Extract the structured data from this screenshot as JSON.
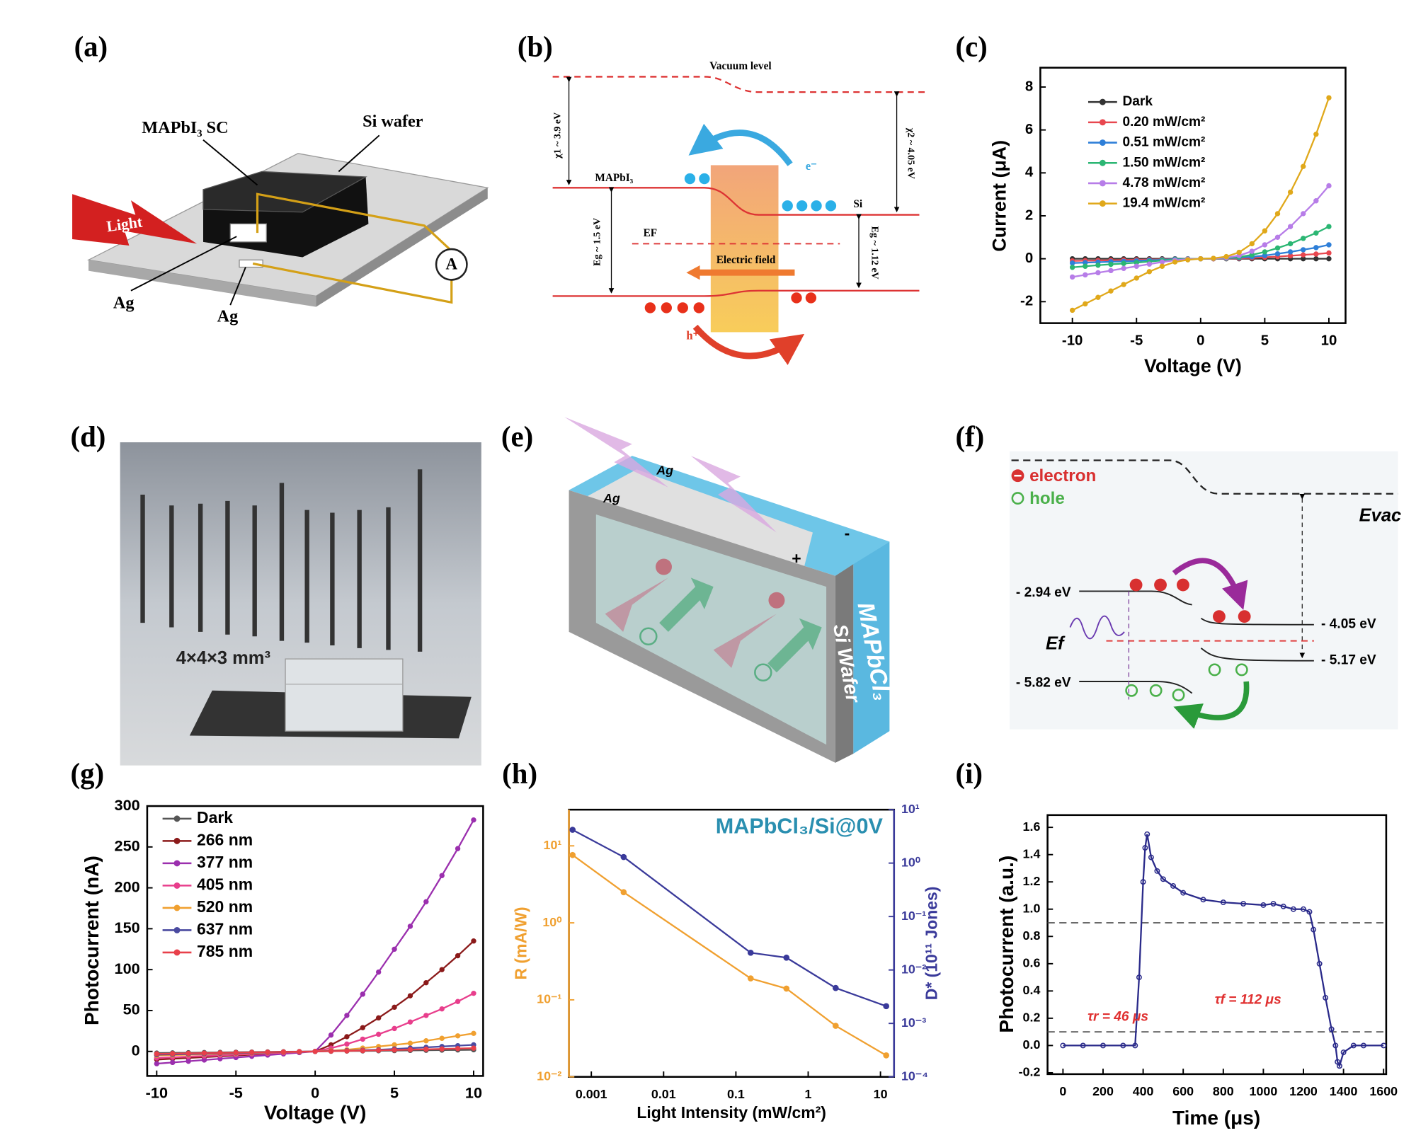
{
  "diagrams": {
    "a": {
      "label": "(a)",
      "crystal": "MAPbI₃ SC",
      "wafer": "Si wafer",
      "light": "Light",
      "electrode_1": "Ag",
      "electrode_2": "Ag",
      "meter": "A"
    },
    "b": {
      "label": "(b)",
      "vacuum": "Vacuum level",
      "chi1": "χ1 ~ 3.9 eV",
      "material": "MAPbI₃",
      "electron": "e⁻",
      "gap1": "Eg ~ 1.5 eV",
      "fermi": "EF",
      "field": "Electric field",
      "hole": "h⁺",
      "chi2": "χ2 ~ 4.05 eV",
      "si": "Si",
      "gap2": "Eg ~ 1.12 eV"
    },
    "d": {
      "label": "(d)",
      "size": "4×4×3 mm³"
    },
    "e": {
      "label": "(e)",
      "ag_1": "Ag",
      "ag_2": "Ag",
      "plus": "+",
      "minus": "-",
      "wafer": "Si Wafer",
      "crystal": "MAPbCl₃"
    },
    "f": {
      "label": "(f)",
      "electron": "electron",
      "hole": "hole",
      "evac": "Evac",
      "level_1": "- 2.94 eV",
      "level_2": "- 4.05 eV",
      "fermi": "Ef",
      "level_3": "- 5.17 eV",
      "level_4": "- 5.82 eV"
    }
  },
  "chart_data": [
    {
      "type": "line",
      "label": "(c)",
      "x_label": "Voltage (V)",
      "y_label": "Current (μA)",
      "x": [
        -10,
        -9,
        -8,
        -7,
        -6,
        -5,
        -4,
        -3,
        -2,
        -1,
        0,
        1,
        2,
        3,
        4,
        5,
        6,
        7,
        8,
        9,
        10
      ],
      "xlim": [
        -12.5,
        11.3
      ],
      "xticks": [
        -10,
        -5,
        0,
        5,
        10
      ],
      "ylim": [
        -3,
        8.9
      ],
      "yticks": [
        -2,
        0,
        2,
        4,
        6,
        8
      ],
      "legend": "upper left",
      "series": [
        {
          "name": "Dark",
          "color": "#333333",
          "values": [
            0,
            0,
            0,
            0,
            0,
            0,
            0,
            0,
            0,
            0,
            0,
            0,
            0,
            0,
            0,
            0,
            0,
            0,
            0,
            0,
            0
          ]
        },
        {
          "name": "0.20 mW/cm²",
          "color": "#e8474f",
          "values": [
            -0.1,
            -0.09,
            -0.08,
            -0.07,
            -0.06,
            -0.05,
            -0.04,
            -0.03,
            -0.02,
            -0.01,
            0,
            0,
            0.01,
            0.02,
            0.04,
            0.07,
            0.1,
            0.14,
            0.18,
            0.22,
            0.27
          ]
        },
        {
          "name": "0.51 mW/cm²",
          "color": "#2e7fd8",
          "values": [
            -0.2,
            -0.18,
            -0.16,
            -0.14,
            -0.12,
            -0.1,
            -0.07,
            -0.05,
            -0.02,
            -0.01,
            0,
            0.01,
            0.02,
            0.05,
            0.09,
            0.15,
            0.23,
            0.32,
            0.42,
            0.52,
            0.65
          ]
        },
        {
          "name": "1.50 mW/cm²",
          "color": "#2bb673",
          "values": [
            -0.4,
            -0.35,
            -0.3,
            -0.26,
            -0.22,
            -0.18,
            -0.13,
            -0.08,
            -0.04,
            -0.01,
            0,
            0.01,
            0.03,
            0.08,
            0.18,
            0.32,
            0.5,
            0.7,
            0.95,
            1.2,
            1.5
          ]
        },
        {
          "name": "4.78 mW/cm²",
          "color": "#b77de8",
          "values": [
            -0.85,
            -0.75,
            -0.65,
            -0.55,
            -0.45,
            -0.35,
            -0.25,
            -0.15,
            -0.07,
            -0.02,
            0,
            0.01,
            0.05,
            0.15,
            0.35,
            0.65,
            1.0,
            1.5,
            2.1,
            2.7,
            3.4
          ]
        },
        {
          "name": "19.4 mW/cm²",
          "color": "#e0a81a",
          "values": [
            -2.4,
            -2.1,
            -1.8,
            -1.5,
            -1.2,
            -0.9,
            -0.6,
            -0.35,
            -0.15,
            -0.05,
            0,
            0.02,
            0.1,
            0.3,
            0.7,
            1.3,
            2.1,
            3.1,
            4.3,
            5.8,
            7.5
          ]
        }
      ]
    },
    {
      "type": "line",
      "label": "(g)",
      "x_label": "Voltage (V)",
      "y_label": "Photocurrent (nA)",
      "x": [
        -10,
        -9,
        -8,
        -7,
        -6,
        -5,
        -4,
        -3,
        -2,
        -1,
        0,
        1,
        2,
        3,
        4,
        5,
        6,
        7,
        8,
        9,
        10
      ],
      "xlim": [
        -10.6,
        10.6
      ],
      "xticks": [
        -10,
        -5,
        0,
        5,
        10
      ],
      "ylim": [
        -30,
        300
      ],
      "yticks": [
        0,
        50,
        100,
        150,
        200,
        250,
        300
      ],
      "legend": "upper left",
      "series": [
        {
          "name": "Dark",
          "color": "#555555",
          "values": [
            -2,
            -1.8,
            -1.6,
            -1.4,
            -1.2,
            -1,
            -0.8,
            -0.6,
            -0.4,
            -0.2,
            0,
            0.2,
            0.4,
            0.6,
            0.8,
            1,
            1.2,
            1.4,
            1.6,
            1.8,
            2
          ]
        },
        {
          "name": "266 nm",
          "color": "#8b1a1a",
          "values": [
            -10,
            -9,
            -8,
            -7,
            -6,
            -5,
            -4,
            -3,
            -2,
            -1,
            0,
            8,
            18,
            29,
            41,
            54,
            68,
            84,
            100,
            117,
            135
          ]
        },
        {
          "name": "377 nm",
          "color": "#9b2fae",
          "values": [
            -15,
            -13.5,
            -12,
            -10.5,
            -9,
            -7.5,
            -6,
            -4.5,
            -3,
            -1.5,
            0,
            20,
            44,
            70,
            97,
            125,
            153,
            183,
            215,
            248,
            283
          ]
        },
        {
          "name": "405 nm",
          "color": "#e83e8c",
          "values": [
            -8,
            -7.2,
            -6.4,
            -5.6,
            -4.8,
            -4,
            -3.2,
            -2.4,
            -1.6,
            -0.8,
            0,
            4,
            9,
            15,
            21,
            28,
            36,
            44,
            52,
            61,
            71
          ]
        },
        {
          "name": "520 nm",
          "color": "#f0a030",
          "values": [
            -5,
            -4.5,
            -4,
            -3.5,
            -3,
            -2.5,
            -2,
            -1.5,
            -1,
            -0.5,
            0,
            1,
            2,
            4,
            6,
            8,
            10,
            13,
            16,
            19,
            22
          ]
        },
        {
          "name": "637 nm",
          "color": "#4a4aa0",
          "values": [
            -4,
            -3.6,
            -3.2,
            -2.8,
            -2.4,
            -2,
            -1.6,
            -1.2,
            -0.8,
            -0.4,
            0,
            0.5,
            1,
            1.5,
            2,
            3,
            4,
            5,
            6,
            7,
            8
          ]
        },
        {
          "name": "785 nm",
          "color": "#e8404a",
          "values": [
            -3,
            -2.7,
            -2.4,
            -2.1,
            -1.8,
            -1.5,
            -1.2,
            -0.9,
            -0.6,
            -0.3,
            0,
            0.3,
            0.6,
            1,
            1.4,
            1.8,
            2.2,
            2.6,
            3,
            3.5,
            4
          ]
        }
      ]
    },
    {
      "type": "line",
      "label": "(h)",
      "x_label": "Light Intensity (mW/cm²)",
      "y_label": "R (mA/W)",
      "y2_label": "D* (10¹¹ Jones)",
      "annotations": [
        "MAPbCl₃/Si@0V"
      ],
      "x": [
        0.00055,
        0.0028,
        0.16,
        0.5,
        2.4,
        12
      ],
      "xlog": true,
      "ylog": true,
      "y2log": true,
      "xlim": [
        0.00049,
        15.4
      ],
      "xticks": [
        0.001,
        0.01,
        0.1,
        1,
        10
      ],
      "ylim": [
        0.01,
        29.5
      ],
      "yticks": [
        {
          "value": 0.01,
          "label": "10⁻²"
        },
        {
          "value": 0.1,
          "label": "10⁻¹"
        },
        {
          "value": 1,
          "label": "10⁰"
        },
        {
          "value": 10,
          "label": "10¹"
        }
      ],
      "y2lim": [
        0.0001,
        10
      ],
      "y2ticks": [
        {
          "value": 0.0001,
          "label": "10⁻⁴"
        },
        {
          "value": 0.001,
          "label": "10⁻³"
        },
        {
          "value": 0.01,
          "label": "10⁻²"
        },
        {
          "value": 0.1,
          "label": "10⁻¹"
        },
        {
          "value": 1,
          "label": "10⁰"
        },
        {
          "value": 10,
          "label": "10¹"
        }
      ],
      "series": [
        {
          "color": "#f0a030",
          "values": [
            7.6,
            2.5,
            0.19,
            0.14,
            0.046,
            0.019
          ]
        },
        {
          "color": "#3a3a9a",
          "axis": "y2",
          "values": [
            4.2,
            1.3,
            0.021,
            0.017,
            0.0046,
            0.0021
          ]
        }
      ]
    },
    {
      "type": "line",
      "label": "(i)",
      "x_label": "Time (μs)",
      "y_label": "Photocurrent (a.u.)",
      "annotations": [
        "τr = 46 μs",
        "τf = 112 μs"
      ],
      "reference_lines": [
        0.9,
        0.1
      ],
      "x": [
        0,
        100,
        200,
        300,
        360,
        380,
        400,
        410,
        420,
        440,
        470,
        500,
        550,
        600,
        700,
        800,
        900,
        1000,
        1050,
        1100,
        1150,
        1200,
        1230,
        1250,
        1280,
        1310,
        1340,
        1360,
        1370,
        1380,
        1400,
        1450,
        1500,
        1600
      ],
      "xlim": [
        -77,
        1613
      ],
      "xticks": [
        0,
        200,
        400,
        600,
        800,
        1000,
        1200,
        1400,
        1600
      ],
      "ylim": [
        -0.21,
        1.69
      ],
      "yticks": [
        -0.2,
        {
          "value": 0,
          "label": "0.0"
        },
        0.2,
        0.4,
        0.6,
        0.8,
        {
          "value": 1,
          "label": "1.0"
        },
        1.2,
        1.4,
        1.6
      ],
      "series": [
        {
          "color": "#2a2a8a",
          "values": [
            0,
            0,
            0,
            0,
            0,
            0.5,
            1.2,
            1.45,
            1.55,
            1.38,
            1.28,
            1.22,
            1.17,
            1.12,
            1.07,
            1.05,
            1.04,
            1.03,
            1.04,
            1.02,
            1.0,
            1.0,
            0.98,
            0.85,
            0.6,
            0.35,
            0.12,
            0.0,
            -0.12,
            -0.15,
            -0.05,
            0,
            0,
            0
          ]
        }
      ]
    }
  ]
}
